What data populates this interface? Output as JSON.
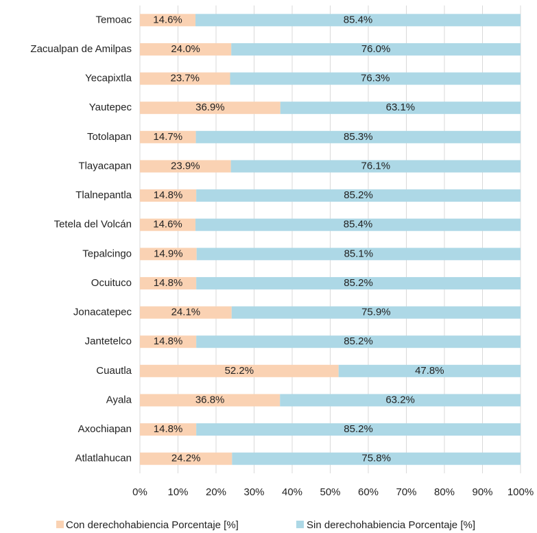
{
  "chart_data": {
    "type": "stacked_barh",
    "categories": [
      "Temoac",
      "Zacualpan de Amilpas",
      "Yecapixtla",
      "Yautepec",
      "Totolapan",
      "Tlayacapan",
      "Tlalnepantla",
      "Tetela del Volcán",
      "Tepalcingo",
      "Ocuituco",
      "Jonacatepec",
      "Jantetelco",
      "Cuautla",
      "Ayala",
      "Axochiapan",
      "Atlatlahucan"
    ],
    "series": [
      {
        "name": "Con derechohabiencia Porcentaje [%]",
        "color": "#fad2b3",
        "values": [
          14.6,
          24.0,
          23.7,
          36.9,
          14.7,
          23.9,
          14.8,
          14.6,
          14.9,
          14.8,
          24.1,
          14.8,
          52.2,
          36.8,
          14.8,
          24.2
        ],
        "value_labels": [
          "14.6%",
          "24.0%",
          "23.7%",
          "36.9%",
          "14.7%",
          "23.9%",
          "14.8%",
          "14.6%",
          "14.9%",
          "14.8%",
          "24.1%",
          "14.8%",
          "52.2%",
          "36.8%",
          "14.8%",
          "24.2%"
        ]
      },
      {
        "name": "Sin derechohabiencia Porcentaje [%]",
        "color": "#add8e6",
        "values": [
          85.4,
          76.0,
          76.3,
          63.1,
          85.3,
          76.1,
          85.2,
          85.4,
          85.1,
          85.2,
          75.9,
          85.2,
          47.8,
          63.2,
          85.2,
          75.8
        ],
        "value_labels": [
          "85.4%",
          "76.0%",
          "76.3%",
          "63.1%",
          "85.3%",
          "76.1%",
          "85.2%",
          "85.4%",
          "85.1%",
          "85.2%",
          "75.9%",
          "85.2%",
          "47.8%",
          "63.2%",
          "85.2%",
          "75.8%"
        ]
      }
    ],
    "xlim": [
      0,
      100
    ],
    "xticks": [
      {
        "value": 0,
        "label": "0%"
      },
      {
        "value": 10,
        "label": "10%"
      },
      {
        "value": 20,
        "label": "20%"
      },
      {
        "value": 30,
        "label": "30%"
      },
      {
        "value": 40,
        "label": "40%"
      },
      {
        "value": 50,
        "label": "50%"
      },
      {
        "value": 60,
        "label": "60%"
      },
      {
        "value": 70,
        "label": "70%"
      },
      {
        "value": 80,
        "label": "80%"
      },
      {
        "value": 90,
        "label": "90%"
      },
      {
        "value": 100,
        "label": "100%"
      }
    ],
    "grid": true,
    "legend": "bottom"
  }
}
